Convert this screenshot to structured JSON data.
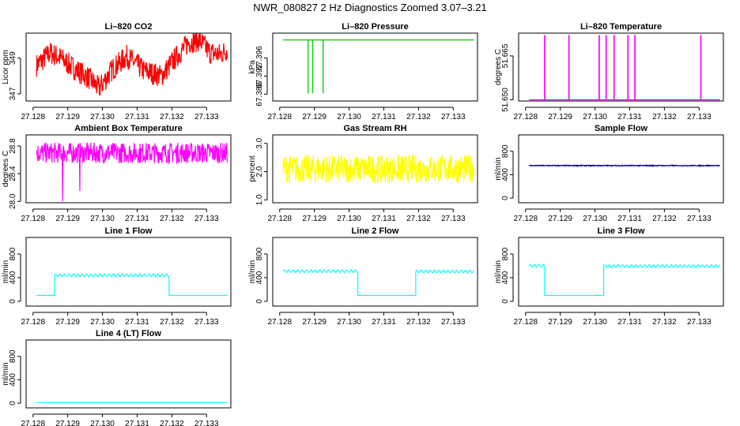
{
  "main_title": "NWR_080827  2 Hz Diagnostics Zoomed 3.07–3.21",
  "x_ticks": [
    "27.128",
    "27.129",
    "27.130",
    "27.131",
    "27.132",
    "27.133"
  ],
  "colors": {
    "red": "#ff0000",
    "green": "#00cc00",
    "magenta": "#ff00ff",
    "yellow": "#ffff00",
    "navy": "#00008b",
    "cyan": "#00ffff"
  },
  "chart_data": [
    {
      "type": "line",
      "title": "Li–820 CO2",
      "ylabel": "Licor ppm",
      "color": "red",
      "xlim": [
        27.1278,
        27.1337
      ],
      "ylim": [
        346.6,
        350.4
      ],
      "yticks": [
        {
          "v": 347,
          "label": "347"
        },
        {
          "v": 349,
          "label": "349"
        }
      ],
      "series": [
        {
          "name": "CO2",
          "points": [
            [
              27.1281,
              348.6
            ],
            [
              27.1285,
              349.3
            ],
            [
              27.1288,
              349.0
            ],
            [
              27.1292,
              348.4
            ],
            [
              27.1296,
              347.9
            ],
            [
              27.1299,
              347.3
            ],
            [
              27.1303,
              348.4
            ],
            [
              27.1307,
              349.1
            ],
            [
              27.1312,
              348.3
            ],
            [
              27.1317,
              348.0
            ],
            [
              27.1321,
              349.0
            ],
            [
              27.1325,
              349.9
            ],
            [
              27.1328,
              350.0
            ],
            [
              27.1331,
              349.3
            ],
            [
              27.1334,
              349.2
            ],
            [
              27.1336,
              349.5
            ]
          ]
        }
      ],
      "noise": 1.3
    },
    {
      "type": "line",
      "title": "Li–820 Pressure",
      "ylabel": "kPa",
      "color": "green",
      "xlim": [
        27.1278,
        27.1337
      ],
      "ylim": [
        67.3865,
        67.4015
      ],
      "yticks": [
        {
          "v": 67.388,
          "label": "67.388"
        },
        {
          "v": 67.392,
          "label": "67.392"
        },
        {
          "v": 67.396,
          "label": "67.396"
        }
      ],
      "series": [
        {
          "name": "pressure",
          "base": 67.4,
          "dips": [
            {
              "x": 27.12882,
              "y": 67.3882
            },
            {
              "x": 27.12895,
              "y": 67.3882
            },
            {
              "x": 27.12925,
              "y": 67.3882
            }
          ]
        }
      ],
      "noise": 0.0001
    },
    {
      "type": "line",
      "title": "Li–820 Temperature",
      "ylabel": "degrees C",
      "color": "magenta",
      "xlim": [
        27.1278,
        27.1337
      ],
      "ylim": [
        51.6496,
        51.6728
      ],
      "yticks": [
        {
          "v": 51.65,
          "label": "51.650"
        },
        {
          "v": 51.665,
          "label": "51.665"
        }
      ],
      "series": [
        {
          "name": "temperature",
          "base": 51.65,
          "spikes": [
            {
              "x": 27.12855,
              "y": 51.672
            },
            {
              "x": 27.12925,
              "y": 51.672
            },
            {
              "x": 27.13012,
              "y": 51.672
            },
            {
              "x": 27.13032,
              "y": 51.672
            },
            {
              "x": 27.13055,
              "y": 51.672
            },
            {
              "x": 27.13095,
              "y": 51.672
            },
            {
              "x": 27.13115,
              "y": 51.672
            },
            {
              "x": 27.13305,
              "y": 51.672
            }
          ]
        }
      ],
      "noise": 0
    },
    {
      "type": "line",
      "title": "Ambient Box Temperature",
      "ylabel": "degrees C",
      "color": "magenta",
      "xlim": [
        27.1278,
        27.1337
      ],
      "ylim": [
        27.98,
        28.96
      ],
      "yticks": [
        {
          "v": 28.0,
          "label": "28.0"
        },
        {
          "v": 28.4,
          "label": "28.4"
        },
        {
          "v": 28.8,
          "label": "28.8"
        }
      ],
      "series": [
        {
          "name": "box temp",
          "mean": 28.7,
          "outliers": [
            {
              "x": 27.12885,
              "y": 28.0
            },
            {
              "x": 27.12935,
              "y": 28.15
            }
          ]
        }
      ],
      "noise": 0.15
    },
    {
      "type": "line",
      "title": "Gas Stream RH",
      "ylabel": "percent",
      "color": "yellow",
      "xlim": [
        27.1278,
        27.1337
      ],
      "ylim": [
        0.9,
        3.3
      ],
      "yticks": [
        {
          "v": 1.0,
          "label": "1.0"
        },
        {
          "v": 2.0,
          "label": "2.0"
        },
        {
          "v": 3.0,
          "label": "3.0"
        }
      ],
      "series": [
        {
          "name": "RH",
          "mean": 2.1
        }
      ],
      "noise": 0.5
    },
    {
      "type": "line",
      "title": "Sample Flow",
      "ylabel": "ml/min",
      "color": "navy",
      "xlim": [
        27.1278,
        27.1337
      ],
      "ylim": [
        -80,
        1080
      ],
      "yticks": [
        {
          "v": 0,
          "label": "0"
        },
        {
          "v": 400,
          "label": "400"
        },
        {
          "v": 800,
          "label": "800"
        }
      ],
      "series": [
        {
          "name": "sample",
          "mean": 555
        }
      ],
      "noise": 8
    },
    {
      "type": "line",
      "title": "Line 1 Flow",
      "ylabel": "ml/min",
      "color": "cyan",
      "xlim": [
        27.1278,
        27.1337
      ],
      "ylim": [
        -80,
        1080
      ],
      "yticks": [
        {
          "v": 0,
          "label": "0"
        },
        {
          "v": 400,
          "label": "400"
        },
        {
          "v": 800,
          "label": "800"
        }
      ],
      "series": [
        {
          "name": "line1",
          "segments": [
            {
              "x0": 27.1281,
              "x1": 27.12862,
              "y": 100,
              "wave": false
            },
            {
              "x0": 27.12862,
              "x1": 27.13192,
              "y": 440,
              "wave": true
            },
            {
              "x0": 27.13192,
              "x1": 27.1336,
              "y": 100,
              "wave": false
            }
          ]
        }
      ],
      "noise": 0
    },
    {
      "type": "line",
      "title": "Line 2 Flow",
      "ylabel": "ml/min",
      "color": "cyan",
      "xlim": [
        27.1278,
        27.1337
      ],
      "ylim": [
        -80,
        1080
      ],
      "yticks": [
        {
          "v": 0,
          "label": "0"
        },
        {
          "v": 400,
          "label": "400"
        },
        {
          "v": 800,
          "label": "800"
        }
      ],
      "series": [
        {
          "name": "line2",
          "segments": [
            {
              "x0": 27.1281,
              "x1": 27.13025,
              "y": 510,
              "wave": true
            },
            {
              "x0": 27.13025,
              "x1": 27.13192,
              "y": 100,
              "wave": false
            },
            {
              "x0": 27.13192,
              "x1": 27.1336,
              "y": 505,
              "wave": true
            }
          ]
        }
      ],
      "noise": 0
    },
    {
      "type": "line",
      "title": "Line 3 Flow",
      "ylabel": "ml/min",
      "color": "cyan",
      "xlim": [
        27.1278,
        27.1337
      ],
      "ylim": [
        -80,
        1080
      ],
      "yticks": [
        {
          "v": 0,
          "label": "0"
        },
        {
          "v": 400,
          "label": "400"
        },
        {
          "v": 800,
          "label": "800"
        }
      ],
      "series": [
        {
          "name": "line3",
          "segments": [
            {
              "x0": 27.1281,
              "x1": 27.12855,
              "y": 600,
              "wave": true
            },
            {
              "x0": 27.12855,
              "x1": 27.13025,
              "y": 100,
              "wave": false
            },
            {
              "x0": 27.13025,
              "x1": 27.1336,
              "y": 595,
              "wave": true
            }
          ]
        }
      ],
      "noise": 0
    },
    {
      "type": "line",
      "title": "Line 4 (LT) Flow",
      "ylabel": "ml/min",
      "color": "cyan",
      "xlim": [
        27.1278,
        27.1337
      ],
      "ylim": [
        -80,
        1080
      ],
      "yticks": [
        {
          "v": 0,
          "label": "0"
        },
        {
          "v": 400,
          "label": "400"
        },
        {
          "v": 800,
          "label": "800"
        }
      ],
      "series": [
        {
          "name": "line4",
          "segments": [
            {
              "x0": 27.1281,
              "x1": 27.1336,
              "y": 12,
              "wave": false
            }
          ]
        }
      ],
      "noise": 0
    }
  ]
}
